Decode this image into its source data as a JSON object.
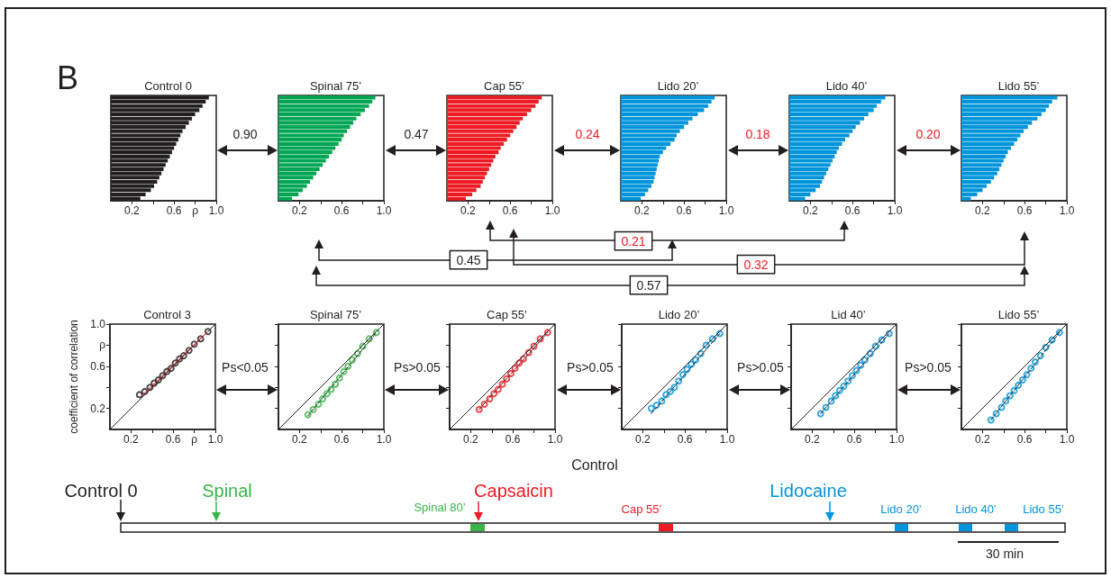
{
  "chart_data": [
    {
      "type": "bar",
      "orientation": "horizontal",
      "title": "Control 0",
      "categories": [
        null,
        null,
        null,
        null,
        null,
        null,
        null,
        null,
        null,
        null,
        null,
        null,
        null,
        null,
        null,
        null,
        null,
        null,
        null,
        null,
        null,
        null,
        null,
        null,
        null
      ],
      "values": [
        0.93,
        0.9,
        0.87,
        0.84,
        0.8,
        0.77,
        0.74,
        0.71,
        0.68,
        0.66,
        0.64,
        0.62,
        0.6,
        0.58,
        0.56,
        0.54,
        0.52,
        0.5,
        0.48,
        0.46,
        0.44,
        0.41,
        0.38,
        0.33,
        0.28
      ],
      "color": "#231f20",
      "xlim": [
        0,
        1
      ],
      "xticks": [
        {
          "value": 0.2,
          "label": "0.2"
        },
        {
          "value": 0.4,
          "label": null
        },
        {
          "value": 0.6,
          "label": "0.6"
        },
        {
          "value": 0.8,
          "label": "ρ"
        },
        {
          "value": 1,
          "label": "1.0"
        }
      ]
    },
    {
      "type": "bar",
      "orientation": "horizontal",
      "title": "Spinal 75’",
      "categories": [
        null,
        null,
        null,
        null,
        null,
        null,
        null,
        null,
        null,
        null,
        null,
        null,
        null,
        null,
        null,
        null,
        null,
        null,
        null,
        null,
        null,
        null,
        null,
        null,
        null
      ],
      "values": [
        0.92,
        0.89,
        0.86,
        0.82,
        0.78,
        0.74,
        0.71,
        0.68,
        0.65,
        0.62,
        0.6,
        0.57,
        0.54,
        0.51,
        0.48,
        0.45,
        0.42,
        0.39,
        0.36,
        0.33,
        0.3,
        0.27,
        0.23,
        0.19,
        0.13
      ],
      "color": "#00a651",
      "xlim": [
        0,
        1
      ],
      "xticks": [
        {
          "value": 0.2,
          "label": "0.2"
        },
        {
          "value": 0.4,
          "label": null
        },
        {
          "value": 0.6,
          "label": "0.6"
        },
        {
          "value": 0.8,
          "label": null
        },
        {
          "value": 1,
          "label": "1.0"
        }
      ]
    },
    {
      "type": "bar",
      "orientation": "horizontal",
      "title": "Cap 55’",
      "categories": [
        null,
        null,
        null,
        null,
        null,
        null,
        null,
        null,
        null,
        null,
        null,
        null,
        null,
        null,
        null,
        null,
        null,
        null,
        null,
        null,
        null,
        null,
        null,
        null,
        null
      ],
      "values": [
        0.9,
        0.87,
        0.84,
        0.8,
        0.76,
        0.72,
        0.69,
        0.66,
        0.63,
        0.6,
        0.57,
        0.54,
        0.51,
        0.49,
        0.46,
        0.44,
        0.42,
        0.4,
        0.38,
        0.36,
        0.34,
        0.32,
        0.28,
        0.24,
        0.18
      ],
      "color": "#ed1c24",
      "xlim": [
        0,
        1
      ],
      "xticks": [
        {
          "value": 0.2,
          "label": "0.2"
        },
        {
          "value": 0.4,
          "label": null
        },
        {
          "value": 0.6,
          "label": "0.6"
        },
        {
          "value": 0.8,
          "label": null
        },
        {
          "value": 1,
          "label": "1.0"
        }
      ]
    },
    {
      "type": "bar",
      "orientation": "horizontal",
      "title": "Lido 20’",
      "categories": [
        null,
        null,
        null,
        null,
        null,
        null,
        null,
        null,
        null,
        null,
        null,
        null,
        null,
        null,
        null,
        null,
        null,
        null,
        null,
        null,
        null,
        null,
        null,
        null,
        null
      ],
      "values": [
        0.89,
        0.86,
        0.83,
        0.79,
        0.73,
        0.68,
        0.64,
        0.6,
        0.56,
        0.53,
        0.51,
        0.47,
        0.43,
        0.4,
        0.37,
        0.36,
        0.35,
        0.34,
        0.33,
        0.32,
        0.31,
        0.29,
        0.26,
        0.23,
        0.19
      ],
      "color": "#0095da",
      "xlim": [
        0,
        1
      ],
      "xticks": [
        {
          "value": 0.2,
          "label": "0.2"
        },
        {
          "value": 0.4,
          "label": null
        },
        {
          "value": 0.6,
          "label": "0.6"
        },
        {
          "value": 0.8,
          "label": null
        },
        {
          "value": 1,
          "label": "1.0"
        }
      ]
    },
    {
      "type": "bar",
      "orientation": "horizontal",
      "title": "Lido 40’",
      "categories": [
        null,
        null,
        null,
        null,
        null,
        null,
        null,
        null,
        null,
        null,
        null,
        null,
        null,
        null,
        null,
        null,
        null,
        null,
        null,
        null,
        null,
        null,
        null,
        null,
        null
      ],
      "values": [
        0.91,
        0.87,
        0.83,
        0.8,
        0.75,
        0.71,
        0.67,
        0.63,
        0.6,
        0.57,
        0.53,
        0.5,
        0.47,
        0.45,
        0.43,
        0.41,
        0.39,
        0.37,
        0.35,
        0.33,
        0.31,
        0.29,
        0.25,
        0.2,
        0.15
      ],
      "color": "#0095da",
      "xlim": [
        0,
        1
      ],
      "xticks": [
        {
          "value": 0.2,
          "label": "0.2"
        },
        {
          "value": 0.4,
          "label": null
        },
        {
          "value": 0.6,
          "label": "0.6"
        },
        {
          "value": 0.8,
          "label": null
        },
        {
          "value": 1,
          "label": "1.0"
        }
      ]
    },
    {
      "type": "bar",
      "orientation": "horizontal",
      "title": "Lido 55’",
      "categories": [
        null,
        null,
        null,
        null,
        null,
        null,
        null,
        null,
        null,
        null,
        null,
        null,
        null,
        null,
        null,
        null,
        null,
        null,
        null,
        null,
        null,
        null,
        null,
        null,
        null
      ],
      "values": [
        0.91,
        0.86,
        0.83,
        0.8,
        0.76,
        0.72,
        0.67,
        0.63,
        0.59,
        0.56,
        0.53,
        0.5,
        0.47,
        0.44,
        0.42,
        0.4,
        0.38,
        0.36,
        0.34,
        0.31,
        0.28,
        0.24,
        0.2,
        0.15,
        0.09
      ],
      "color": "#0095da",
      "xlim": [
        0,
        1
      ],
      "xticks": [
        {
          "value": 0.2,
          "label": "0.2"
        },
        {
          "value": 0.4,
          "label": null
        },
        {
          "value": 0.6,
          "label": "0.6"
        },
        {
          "value": 0.8,
          "label": null
        },
        {
          "value": 1,
          "label": "1.0"
        }
      ]
    },
    {
      "type": "scatter",
      "title": "Control 3",
      "ylabel": "coefficient of correlation",
      "marker": "circle",
      "xlim": [
        0,
        1
      ],
      "ylim": [
        0,
        1
      ],
      "xticks": [
        {
          "value": 0.2,
          "label": "0.2"
        },
        {
          "value": 0.4,
          "label": null
        },
        {
          "value": 0.6,
          "label": "0.6"
        },
        {
          "value": 0.8,
          "label": "ρ"
        },
        {
          "value": 1,
          "label": "1.0"
        }
      ],
      "yticks": [
        {
          "value": 0.2,
          "label": "0.2"
        },
        {
          "value": 0.4,
          "label": null
        },
        {
          "value": 0.6,
          "label": "0.6"
        },
        {
          "value": 0.8,
          "label": "ρ"
        },
        {
          "value": 1,
          "label": "1.0"
        }
      ],
      "x": [
        0.28,
        0.33,
        0.38,
        0.42,
        0.46,
        0.5,
        0.54,
        0.58,
        0.62,
        0.66,
        0.7,
        0.75,
        0.8,
        0.86,
        0.93
      ],
      "series": [
        {
          "color": "#231f20",
          "values": [
            0.33,
            0.36,
            0.4,
            0.44,
            0.47,
            0.51,
            0.55,
            0.58,
            0.63,
            0.67,
            0.7,
            0.75,
            0.81,
            0.86,
            0.93
          ]
        },
        {
          "type": "line",
          "marker": "none",
          "x": [
            0,
            1
          ],
          "values": [
            0,
            1
          ],
          "color": "#231f20"
        },
        {
          "type": "line",
          "marker": "none",
          "x": [
            0.3,
            0.93
          ],
          "values": [
            0.32,
            0.93
          ],
          "color": "#ed1c24"
        }
      ]
    },
    {
      "type": "scatter",
      "title": "Spinal 75’",
      "marker": "circle",
      "tick_labels": "x",
      "xlim": [
        0,
        1
      ],
      "ylim": [
        0,
        1
      ],
      "xticks": [
        {
          "value": 0.2,
          "label": "0.2"
        },
        {
          "value": 0.4,
          "label": null
        },
        {
          "value": 0.6,
          "label": "0.6"
        },
        {
          "value": 0.8,
          "label": null
        },
        {
          "value": 1,
          "label": "1.0"
        }
      ],
      "yticks": [
        {
          "value": 0.2,
          "label": null
        },
        {
          "value": 0.4,
          "label": null
        },
        {
          "value": 0.6,
          "label": null
        },
        {
          "value": 0.8,
          "label": null
        },
        {
          "value": 1.0,
          "label": null
        }
      ],
      "x": [
        0.28,
        0.33,
        0.38,
        0.42,
        0.46,
        0.5,
        0.54,
        0.58,
        0.62,
        0.66,
        0.7,
        0.75,
        0.8,
        0.86,
        0.93
      ],
      "series": [
        {
          "color": "#39b54a",
          "values": [
            0.14,
            0.19,
            0.24,
            0.29,
            0.34,
            0.38,
            0.43,
            0.49,
            0.55,
            0.6,
            0.66,
            0.72,
            0.79,
            0.86,
            0.92
          ]
        },
        {
          "type": "line",
          "marker": "none",
          "x": [
            0,
            1
          ],
          "values": [
            0,
            1
          ],
          "color": "#231f20"
        },
        {
          "type": "line",
          "marker": "none",
          "line_style": "dashed",
          "x": [
            0.28,
            0.93
          ],
          "values": [
            0.13,
            0.92
          ],
          "color": "#231f20"
        }
      ]
    },
    {
      "type": "scatter",
      "title": "Cap 55’",
      "marker": "circle",
      "tick_labels": "x",
      "xlim": [
        0,
        1
      ],
      "ylim": [
        0,
        1
      ],
      "xticks": [
        {
          "value": 0.2,
          "label": "0.2"
        },
        {
          "value": 0.4,
          "label": null
        },
        {
          "value": 0.6,
          "label": "0.6"
        },
        {
          "value": 0.8,
          "label": null
        },
        {
          "value": 1,
          "label": "1.0"
        }
      ],
      "yticks": [
        {
          "value": 0.2,
          "label": null
        },
        {
          "value": 0.4,
          "label": null
        },
        {
          "value": 0.6,
          "label": null
        },
        {
          "value": 0.8,
          "label": null
        },
        {
          "value": 1.0,
          "label": null
        }
      ],
      "x": [
        0.28,
        0.33,
        0.38,
        0.42,
        0.46,
        0.5,
        0.54,
        0.58,
        0.62,
        0.66,
        0.7,
        0.75,
        0.8,
        0.86,
        0.93
      ],
      "series": [
        {
          "color": "#ed1c24",
          "values": [
            0.19,
            0.24,
            0.29,
            0.34,
            0.38,
            0.43,
            0.48,
            0.53,
            0.58,
            0.63,
            0.67,
            0.73,
            0.79,
            0.86,
            0.92
          ]
        },
        {
          "type": "line",
          "marker": "none",
          "x": [
            0,
            1
          ],
          "values": [
            0,
            1
          ],
          "color": "#231f20"
        },
        {
          "type": "line",
          "marker": "none",
          "line_style": "dashed",
          "x": [
            0.28,
            0.93
          ],
          "values": [
            0.19,
            0.92
          ],
          "color": "#231f20"
        }
      ]
    },
    {
      "type": "scatter",
      "title": "Lido 20’",
      "marker": "circle",
      "tick_labels": "x",
      "xlim": [
        0,
        1
      ],
      "ylim": [
        0,
        1
      ],
      "xticks": [
        {
          "value": 0.2,
          "label": "0.2"
        },
        {
          "value": 0.4,
          "label": null
        },
        {
          "value": 0.6,
          "label": "0.6"
        },
        {
          "value": 0.8,
          "label": null
        },
        {
          "value": 1,
          "label": "1.0"
        }
      ],
      "yticks": [
        {
          "value": 0.2,
          "label": null
        },
        {
          "value": 0.4,
          "label": null
        },
        {
          "value": 0.6,
          "label": null
        },
        {
          "value": 0.8,
          "label": null
        },
        {
          "value": 1.0,
          "label": null
        }
      ],
      "x": [
        0.28,
        0.33,
        0.38,
        0.42,
        0.46,
        0.5,
        0.54,
        0.58,
        0.62,
        0.66,
        0.7,
        0.75,
        0.8,
        0.86,
        0.93
      ],
      "series": [
        {
          "color": "#0095da",
          "values": [
            0.2,
            0.23,
            0.27,
            0.33,
            0.36,
            0.4,
            0.46,
            0.52,
            0.57,
            0.62,
            0.66,
            0.72,
            0.8,
            0.86,
            0.91
          ]
        },
        {
          "type": "line",
          "marker": "none",
          "x": [
            0,
            1
          ],
          "values": [
            0,
            1
          ],
          "color": "#231f20"
        },
        {
          "type": "line",
          "marker": "none",
          "line_style": "dashed",
          "x": [
            0.28,
            0.93
          ],
          "values": [
            0.15,
            0.91
          ],
          "color": "#231f20"
        }
      ]
    },
    {
      "type": "scatter",
      "title": "Lid 40’",
      "marker": "circle",
      "tick_labels": "x",
      "xlim": [
        0,
        1
      ],
      "ylim": [
        0,
        1
      ],
      "xticks": [
        {
          "value": 0.2,
          "label": "0.2"
        },
        {
          "value": 0.4,
          "label": null
        },
        {
          "value": 0.6,
          "label": "0.6"
        },
        {
          "value": 0.8,
          "label": null
        },
        {
          "value": 1,
          "label": "1.0"
        }
      ],
      "yticks": [
        {
          "value": 0.2,
          "label": null
        },
        {
          "value": 0.4,
          "label": null
        },
        {
          "value": 0.6,
          "label": null
        },
        {
          "value": 0.8,
          "label": null
        },
        {
          "value": 1.0,
          "label": null
        }
      ],
      "x": [
        0.28,
        0.33,
        0.38,
        0.42,
        0.46,
        0.5,
        0.54,
        0.58,
        0.62,
        0.66,
        0.7,
        0.75,
        0.8,
        0.86,
        0.93
      ],
      "series": [
        {
          "color": "#0095da",
          "values": [
            0.15,
            0.21,
            0.27,
            0.32,
            0.37,
            0.41,
            0.46,
            0.51,
            0.56,
            0.61,
            0.66,
            0.72,
            0.79,
            0.85,
            0.91
          ]
        },
        {
          "type": "line",
          "marker": "none",
          "x": [
            0,
            1
          ],
          "values": [
            0,
            1
          ],
          "color": "#231f20"
        },
        {
          "type": "line",
          "marker": "none",
          "line_style": "dashed",
          "x": [
            0.28,
            0.93
          ],
          "values": [
            0.15,
            0.91
          ],
          "color": "#231f20"
        }
      ]
    },
    {
      "type": "scatter",
      "title": "Lido 55’",
      "marker": "circle",
      "tick_labels": "x",
      "xlim": [
        0,
        1
      ],
      "ylim": [
        0,
        1
      ],
      "xticks": [
        {
          "value": 0.2,
          "label": "0.2"
        },
        {
          "value": 0.4,
          "label": null
        },
        {
          "value": 0.6,
          "label": "0.6"
        },
        {
          "value": 0.8,
          "label": null
        },
        {
          "value": 1,
          "label": "1.0"
        }
      ],
      "yticks": [
        {
          "value": 0.2,
          "label": null
        },
        {
          "value": 0.4,
          "label": null
        },
        {
          "value": 0.6,
          "label": null
        },
        {
          "value": 0.8,
          "label": null
        },
        {
          "value": 1.0,
          "label": null
        }
      ],
      "x": [
        0.28,
        0.33,
        0.38,
        0.42,
        0.46,
        0.5,
        0.54,
        0.58,
        0.62,
        0.66,
        0.7,
        0.75,
        0.8,
        0.86,
        0.93
      ],
      "series": [
        {
          "color": "#0095da",
          "values": [
            0.09,
            0.15,
            0.21,
            0.27,
            0.32,
            0.37,
            0.42,
            0.47,
            0.52,
            0.58,
            0.64,
            0.7,
            0.78,
            0.85,
            0.92
          ]
        },
        {
          "type": "line",
          "marker": "none",
          "x": [
            0,
            1
          ],
          "values": [
            0,
            1
          ],
          "color": "#231f20"
        },
        {
          "type": "line",
          "marker": "none",
          "line_style": "dashed",
          "x": [
            0.28,
            0.93
          ],
          "values": [
            0.09,
            0.92
          ],
          "color": "#231f20"
        }
      ]
    },
    {
      "type": "other",
      "annotations": [
        "B",
        "0.90",
        "0.47",
        "0.24",
        "0.18",
        "0.20",
        "0.21",
        "0.45",
        "0.32",
        "0.57",
        "Ps<0.05",
        "Ps>0.05",
        "Ps>0.05",
        "Ps>0.05",
        "Ps>0.05",
        "Control",
        "Control 0",
        "Spinal",
        "Spinal 80’",
        "Capsaicin",
        "Cap 55’",
        "Lidocaine",
        "Lido 20’",
        "Lido 40’",
        "Lido 55’",
        "30 min"
      ]
    }
  ]
}
